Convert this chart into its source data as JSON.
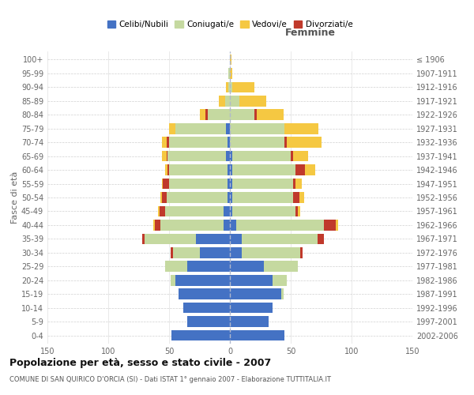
{
  "age_groups": [
    "0-4",
    "5-9",
    "10-14",
    "15-19",
    "20-24",
    "25-29",
    "30-34",
    "35-39",
    "40-44",
    "45-49",
    "50-54",
    "55-59",
    "60-64",
    "65-69",
    "70-74",
    "75-79",
    "80-84",
    "85-89",
    "90-94",
    "95-99",
    "100+"
  ],
  "birth_years": [
    "2002-2006",
    "1997-2001",
    "1992-1996",
    "1987-1991",
    "1982-1986",
    "1977-1981",
    "1972-1976",
    "1967-1971",
    "1962-1966",
    "1957-1961",
    "1952-1956",
    "1947-1951",
    "1942-1946",
    "1937-1941",
    "1932-1936",
    "1927-1931",
    "1922-1926",
    "1917-1921",
    "1912-1916",
    "1907-1911",
    "≤ 1906"
  ],
  "males": {
    "celibe": [
      48,
      35,
      38,
      42,
      45,
      35,
      25,
      28,
      5,
      5,
      2,
      2,
      2,
      3,
      2,
      3,
      0,
      0,
      0,
      0,
      0
    ],
    "coniugato": [
      0,
      0,
      0,
      0,
      4,
      18,
      22,
      42,
      52,
      48,
      50,
      48,
      48,
      48,
      48,
      42,
      18,
      4,
      1,
      1,
      0
    ],
    "vedovo": [
      0,
      0,
      0,
      0,
      0,
      0,
      0,
      0,
      1,
      1,
      1,
      1,
      2,
      4,
      4,
      5,
      5,
      5,
      2,
      0,
      0
    ],
    "divorziato": [
      0,
      0,
      0,
      0,
      0,
      0,
      2,
      2,
      5,
      5,
      4,
      5,
      1,
      1,
      2,
      0,
      2,
      0,
      0,
      0,
      0
    ]
  },
  "females": {
    "nubile": [
      45,
      32,
      35,
      42,
      35,
      28,
      10,
      10,
      5,
      2,
      2,
      2,
      2,
      2,
      0,
      0,
      0,
      0,
      0,
      0,
      0
    ],
    "coniugata": [
      0,
      0,
      0,
      2,
      12,
      28,
      48,
      62,
      72,
      52,
      50,
      50,
      52,
      48,
      45,
      45,
      20,
      8,
      2,
      0,
      0
    ],
    "vedova": [
      0,
      0,
      0,
      0,
      0,
      0,
      0,
      0,
      2,
      2,
      4,
      5,
      8,
      12,
      28,
      28,
      22,
      22,
      18,
      2,
      1
    ],
    "divorziata": [
      0,
      0,
      0,
      0,
      0,
      0,
      2,
      5,
      10,
      2,
      5,
      2,
      8,
      2,
      2,
      0,
      2,
      0,
      0,
      0,
      0
    ]
  },
  "colors": {
    "celibe": "#4472c4",
    "coniugato": "#c5d9a0",
    "vedovo": "#f5c842",
    "divorziato": "#c0392b"
  },
  "xlim": 150,
  "title": "Popolazione per età, sesso e stato civile - 2007",
  "subtitle": "COMUNE DI SAN QUIRICO D'ORCIA (SI) - Dati ISTAT 1° gennaio 2007 - Elaborazione TUTTITALIA.IT",
  "ylabel_left": "Fasce di età",
  "xlabel_right": "Femmine",
  "legend_labels": [
    "Celibi/Nubili",
    "Coniugati/e",
    "Vedovi/e",
    "Divorziati/e"
  ],
  "background_color": "#ffffff",
  "grid_color": "#cccccc"
}
